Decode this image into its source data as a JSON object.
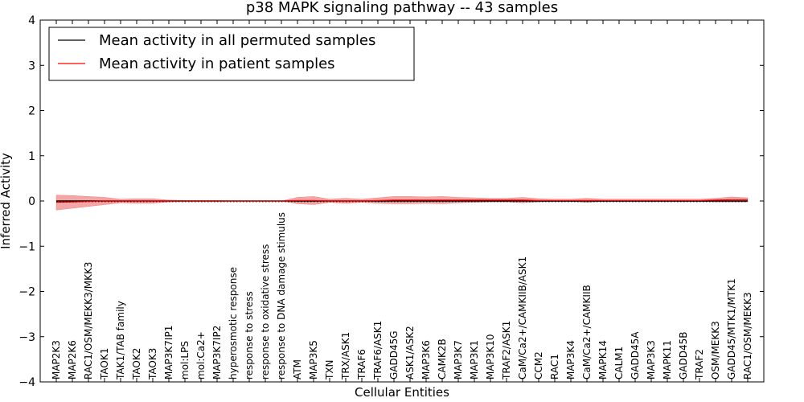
{
  "chart_data": {
    "type": "line",
    "title": "p38 MAPK signaling pathway -- 43 samples",
    "xlabel": "Cellular Entities",
    "ylabel": "Inferred Activity",
    "ylim": [
      -4,
      4
    ],
    "yticks": [
      -4,
      -3,
      -2,
      -1,
      0,
      1,
      2,
      3,
      4
    ],
    "ytick_labels": [
      "−4",
      "−3",
      "−2",
      "−1",
      "0",
      "1",
      "2",
      "3",
      "4"
    ],
    "legend_position": "top-left",
    "categories": [
      "MAP2K3",
      "MAP2K6",
      "RAC1/OSM/MEKK3/MKK3",
      "TAOK1",
      "TAK1/TAB family",
      "TAOK2",
      "TAOK3",
      "MAP3K7IP1",
      "mol:LPS",
      "mol:Ca2+",
      "MAP3K7IP2",
      "hyperosmotic response",
      "response to stress",
      "response to oxidative stress",
      "response to DNA damage stimulus",
      "ATM",
      "MAP3K5",
      "TXN",
      "TRX/ASK1",
      "TRAF6",
      "TRAF6/ASK1",
      "GADD45G",
      "ASK1/ASK2",
      "MAP3K6",
      "CAMK2B",
      "MAP3K7",
      "MAP3K1",
      "MAP3K10",
      "TRAF2/ASK1",
      "CaM/Ca2+/CAMKIIB/ASK1",
      "CCM2",
      "RAC1",
      "MAP3K4",
      "CaM/Ca2+/CAMKIIB",
      "MAPK14",
      "CALM1",
      "GADD45A",
      "MAP3K3",
      "MAPK11",
      "GADD45B",
      "TRAF2",
      "OSM/MEKK3",
      "GADD45/MTK1/MTK1",
      "RAC1/OSM/MEKK3"
    ],
    "series": [
      {
        "name": "Mean activity in all permuted samples",
        "color": "#000000",
        "values": [
          0,
          0,
          0,
          0,
          0,
          0,
          0,
          0,
          0,
          0,
          0,
          0,
          0,
          0,
          0,
          0,
          0,
          0,
          0,
          0,
          0,
          0,
          0,
          0,
          0,
          0,
          0,
          0,
          0,
          0,
          0,
          0,
          0,
          0,
          0,
          0,
          0,
          0,
          0,
          0,
          0,
          0,
          0,
          0
        ]
      },
      {
        "name": "Mean activity in patient samples",
        "color": "#ff0000",
        "band_color": "#f08080",
        "values": [
          -0.03,
          -0.02,
          -0.01,
          0.0,
          0.0,
          0.0,
          0.0,
          0.0,
          0.0,
          0.0,
          0.0,
          0.0,
          0.0,
          0.0,
          0.0,
          0.01,
          0.01,
          0.0,
          0.0,
          0.0,
          0.01,
          0.02,
          0.02,
          0.02,
          0.02,
          0.02,
          0.02,
          0.02,
          0.02,
          0.02,
          0.01,
          0.01,
          0.01,
          0.01,
          0.01,
          0.01,
          0.01,
          0.01,
          0.01,
          0.01,
          0.01,
          0.02,
          0.03,
          0.03
        ],
        "upper": [
          0.13,
          0.12,
          0.1,
          0.08,
          0.04,
          0.05,
          0.05,
          0.02,
          0.01,
          0.01,
          0.01,
          0.0,
          0.0,
          0.0,
          0.0,
          0.08,
          0.1,
          0.04,
          0.06,
          0.04,
          0.07,
          0.1,
          0.1,
          0.09,
          0.1,
          0.08,
          0.07,
          0.06,
          0.06,
          0.08,
          0.05,
          0.04,
          0.04,
          0.06,
          0.04,
          0.04,
          0.04,
          0.04,
          0.04,
          0.04,
          0.04,
          0.06,
          0.09,
          0.07
        ],
        "lower": [
          -0.2,
          -0.16,
          -0.12,
          -0.08,
          -0.04,
          -0.05,
          -0.05,
          -0.02,
          -0.01,
          -0.01,
          -0.01,
          0.0,
          0.0,
          0.0,
          0.0,
          -0.06,
          -0.08,
          -0.03,
          -0.05,
          -0.03,
          -0.05,
          -0.06,
          -0.06,
          -0.05,
          -0.06,
          -0.04,
          -0.03,
          -0.02,
          -0.02,
          -0.04,
          -0.02,
          -0.01,
          -0.01,
          -0.03,
          -0.01,
          -0.01,
          -0.01,
          -0.01,
          -0.01,
          -0.01,
          -0.01,
          -0.02,
          -0.02,
          -0.02
        ]
      }
    ]
  }
}
